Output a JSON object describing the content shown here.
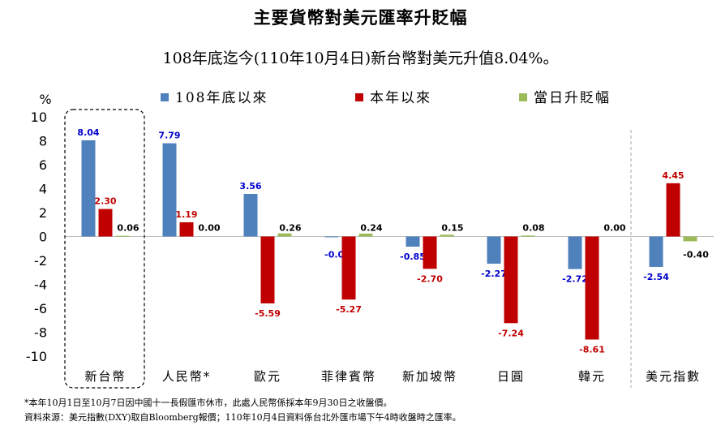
{
  "title": "主要貨幣對美元匯率升貶幅",
  "subtitle": "108年底迄今(110年10月4日)新台幣對美元升值8.04%。",
  "notes": [
    "*本年10月1日至10月7日因中國十一長假匯市休市，此處人民幣係採本年9月30日之收盤價。",
    "資料來源：美元指數(DXY)取自Bloomberg報價；110年10月4日資料係台北外匯市場下午4時收盤時之匯率。"
  ],
  "chart_data": {
    "type": "bar",
    "ylabel": "%",
    "ylim": [
      -10,
      10
    ],
    "yticks": [
      10,
      8,
      6,
      4,
      2,
      0,
      -2,
      -4,
      -6,
      -8,
      -10
    ],
    "legend_position": "top",
    "categories": [
      "新台幣",
      "人民幣*",
      "歐元",
      "菲律賓幣",
      "新加坡幣",
      "日圓",
      "韓元",
      "美元指數"
    ],
    "highlighted_category": "新台幣",
    "series": [
      {
        "name": "108年底以來",
        "color": "#4f81bd",
        "label_color": "#0000cc",
        "values": [
          8.04,
          7.79,
          3.56,
          -0.04,
          -0.85,
          -2.27,
          -2.72,
          -2.54
        ]
      },
      {
        "name": "本年以來",
        "color": "#c00000",
        "label_color": "#c00000",
        "values": [
          2.3,
          1.19,
          -5.59,
          -5.27,
          -2.7,
          -7.24,
          -8.61,
          4.45
        ]
      },
      {
        "name": "當日升貶幅",
        "color": "#9bbb59",
        "label_color": "#000000",
        "values": [
          0.06,
          0.0,
          0.26,
          0.24,
          0.15,
          0.08,
          0.0,
          -0.4
        ]
      }
    ]
  }
}
